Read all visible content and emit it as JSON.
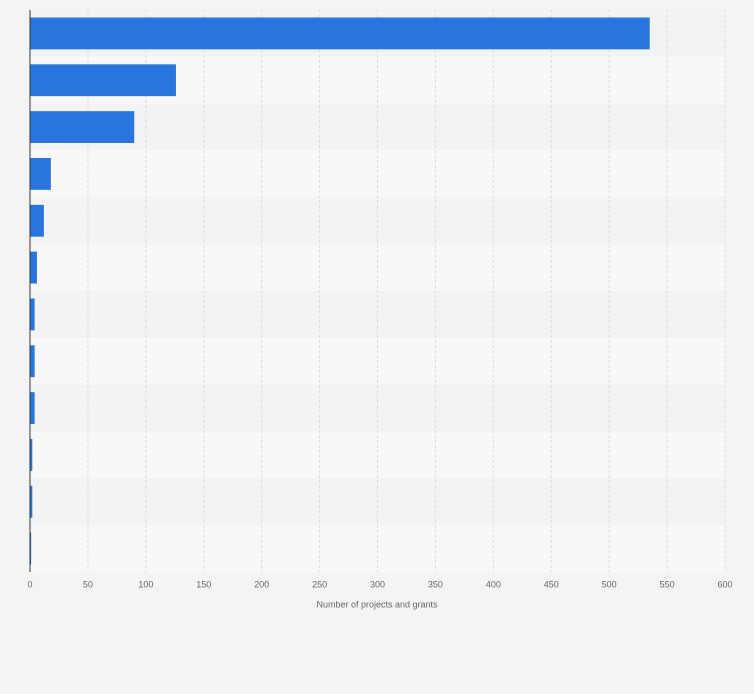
{
  "chart_data": {
    "type": "bar",
    "orientation": "horizontal",
    "categories": [
      null,
      null,
      null,
      null,
      null,
      null,
      null,
      null,
      null,
      null,
      null,
      null
    ],
    "values": [
      535,
      126,
      90,
      18,
      12,
      6,
      4,
      4,
      4,
      2,
      2,
      1
    ],
    "color": "#2876dd",
    "xlabel": "Number of projects and grants",
    "xlim": [
      0,
      600
    ],
    "xticks": [
      0,
      50,
      100,
      150,
      200,
      250,
      300,
      350,
      400,
      450,
      500,
      550,
      600
    ],
    "grid": true
  }
}
